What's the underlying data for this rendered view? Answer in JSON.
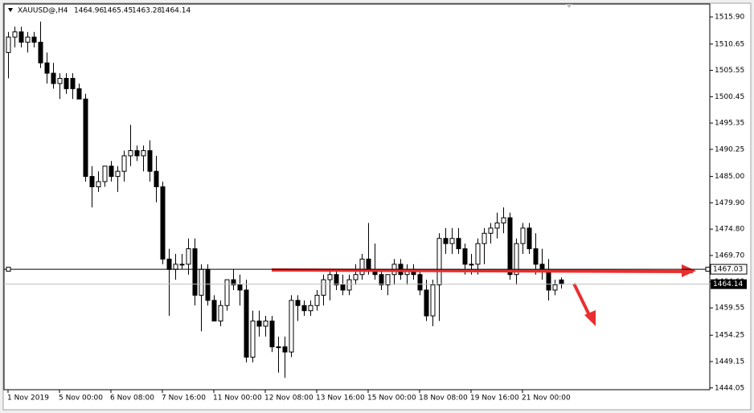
{
  "chart_data": {
    "type": "candlestick",
    "title": "XAUUSD@,H4",
    "categories": [
      "1 Nov 2019",
      null,
      null,
      null,
      null,
      null,
      null,
      null,
      "5 Nov 00:00",
      null,
      null,
      null,
      null,
      null,
      null,
      null,
      "6 Nov 08:00",
      null,
      null,
      null,
      null,
      null,
      null,
      null,
      "7 Nov 16:00",
      null,
      null,
      null,
      null,
      null,
      null,
      null,
      "11 Nov 00:00",
      null,
      null,
      null,
      null,
      null,
      null,
      null,
      "12 Nov 08:00",
      null,
      null,
      null,
      null,
      null,
      null,
      null,
      "13 Nov 16:00",
      null,
      null,
      null,
      null,
      null,
      null,
      null,
      "15 Nov 00:00",
      null,
      null,
      null,
      null,
      null,
      null,
      null,
      "18 Nov 08:00",
      null,
      null,
      null,
      null,
      null,
      null,
      null,
      "19 Nov 16:00",
      null,
      null,
      null,
      null,
      null,
      null,
      null,
      "21 Nov 00:00",
      null,
      null,
      null,
      null,
      null,
      null
    ],
    "open": [
      1509,
      1512,
      1513,
      1511,
      1512,
      1511,
      1507,
      1505,
      1503,
      1504,
      1504,
      1502,
      1500,
      1485,
      1483,
      1484,
      1487,
      1485,
      1486,
      1489,
      1490,
      1489,
      1490,
      1486,
      1483,
      1469,
      1467,
      1468,
      1468,
      1471,
      1462,
      1467,
      1461,
      1457,
      1460,
      1465,
      1464,
      1463,
      1450,
      1457,
      1456,
      1457,
      1452,
      1452,
      1451,
      1461,
      1460,
      1459,
      1460,
      1462,
      1465,
      1466,
      1464,
      1463,
      1465,
      1466,
      1469,
      1467,
      1466,
      1464,
      1466,
      1468,
      1466,
      1467,
      1466,
      1463,
      1458,
      1464,
      1473,
      1472,
      1473,
      1471,
      1468,
      1468,
      1472,
      1474,
      1475,
      1476,
      1477,
      1466,
      1472,
      1475,
      1471,
      1468,
      1467,
      1463,
      1464.96
    ],
    "high": [
      1513,
      1514,
      1514,
      1513,
      1513,
      1515,
      1509,
      1507,
      1505,
      1505,
      1505,
      1503,
      1501,
      1487,
      1486,
      1487,
      1488,
      1487,
      1490,
      1495,
      1491,
      1491,
      1492,
      1489,
      1484,
      1471,
      1470,
      1470,
      1473,
      1473,
      1468,
      1468,
      1462,
      1461,
      1465,
      1467,
      1466,
      1465,
      1459,
      1459,
      1458,
      1458,
      1454,
      1454,
      1462,
      1462,
      1461,
      1461,
      1463,
      1466,
      1467,
      1467,
      1466,
      1466,
      1468,
      1470,
      1476,
      1472,
      1467,
      1466,
      1469,
      1469,
      1468,
      1468,
      1467,
      1465,
      1465,
      1474,
      1475,
      1475,
      1475,
      1472,
      1470,
      1473,
      1475,
      1476,
      1478,
      1479,
      1478,
      1473,
      1476,
      1476,
      1474,
      1471,
      1469,
      1465,
      1465.45
    ],
    "low": [
      1504,
      1510,
      1510,
      1509,
      1510,
      1506,
      1503,
      1502,
      1500,
      1501,
      1500,
      1500,
      1484,
      1479,
      1482,
      1483,
      1484,
      1482,
      1484,
      1487,
      1488,
      1486,
      1484,
      1480,
      1468,
      1458,
      1465,
      1467,
      1466,
      1460,
      1455,
      1460,
      1457,
      1456,
      1459,
      1463,
      1460,
      1449,
      1449,
      1454,
      1454,
      1451,
      1447,
      1446,
      1450,
      1457,
      1458,
      1458,
      1459,
      1460,
      1461,
      1463,
      1462,
      1462,
      1464,
      1465,
      1466,
      1465,
      1463,
      1462,
      1464,
      1465,
      1464,
      1465,
      1462,
      1457,
      1456,
      1457,
      1470,
      1470,
      1470,
      1466,
      1466,
      1466,
      1468,
      1472,
      1473,
      1474,
      1465,
      1464,
      1470,
      1470,
      1466,
      1465,
      1461,
      1462,
      1463.28
    ],
    "close": [
      1512,
      1513,
      1511,
      1512,
      1511,
      1507,
      1505,
      1503,
      1504,
      1502,
      1502,
      1500,
      1485,
      1483,
      1484,
      1487,
      1485,
      1486,
      1489,
      1490,
      1489,
      1490,
      1486,
      1483,
      1469,
      1467,
      1468,
      1468,
      1471,
      1462,
      1467,
      1461,
      1457,
      1460,
      1465,
      1464,
      1463,
      1450,
      1457,
      1456,
      1457,
      1452,
      1452,
      1451,
      1461,
      1460,
      1459,
      1460,
      1462,
      1465,
      1466,
      1464,
      1463,
      1465,
      1466,
      1469,
      1467,
      1466,
      1464,
      1466,
      1468,
      1466,
      1467,
      1466,
      1463,
      1458,
      1464,
      1473,
      1472,
      1473,
      1471,
      1468,
      1468,
      1472,
      1474,
      1475,
      1476,
      1477,
      1466,
      1472,
      1475,
      1471,
      1468,
      1467,
      1463,
      1464,
      1464.14
    ],
    "ylim": [
      1443.7,
      1518.4
    ],
    "yticks": [
      {
        "value": 1515.9,
        "label": "1515.90"
      },
      {
        "value": 1510.65,
        "label": "1510.65"
      },
      {
        "value": 1505.55,
        "label": "1505.55"
      },
      {
        "value": 1500.45,
        "label": "1500.45"
      },
      {
        "value": 1495.35,
        "label": "1495.35"
      },
      {
        "value": 1490.25,
        "label": "1490.25"
      },
      {
        "value": 1485,
        "label": "1485.00"
      },
      {
        "value": 1479.9,
        "label": "1479.90"
      },
      {
        "value": 1474.8,
        "label": "1474.80"
      },
      {
        "value": 1469.7,
        "label": "1469.70"
      },
      {
        "value": 1464.6,
        "label": "1464.60"
      },
      {
        "value": 1459.55,
        "label": "1459.55"
      },
      {
        "value": 1454.25,
        "label": "1454.25"
      },
      {
        "value": 1449.15,
        "label": "1449.15"
      },
      {
        "value": 1444.05,
        "label": "1444.05"
      }
    ],
    "level_line": 1467.03
  }
}
